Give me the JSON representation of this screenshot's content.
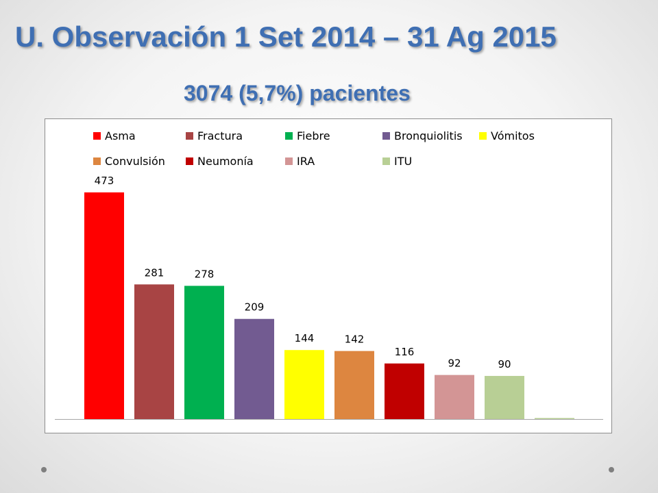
{
  "slide": {
    "title": "U. Observación 1 Set 2014 – 31 Ag 2015",
    "subtitle": "3074 (5,7%) pacientes"
  },
  "chart_data": {
    "type": "bar",
    "grid": false,
    "legend_position": "top",
    "ylim": [
      0,
      473
    ],
    "series": [
      {
        "name": "Asma",
        "value": 473,
        "color": "#ff0000"
      },
      {
        "name": "Fractura",
        "value": 281,
        "color": "#a84444"
      },
      {
        "name": "Fiebre",
        "value": 278,
        "color": "#00b050"
      },
      {
        "name": "Bronquiolitis",
        "value": 209,
        "color": "#725b91"
      },
      {
        "name": "Vómitos",
        "value": 144,
        "color": "#ffff00"
      },
      {
        "name": "Convulsión",
        "value": 142,
        "color": "#dd8640"
      },
      {
        "name": "Neumonía",
        "value": 116,
        "color": "#c00000"
      },
      {
        "name": "IRA",
        "value": 92,
        "color": "#d39595"
      },
      {
        "name": "ITU",
        "value": 90,
        "color": "#b8cf95"
      },
      {
        "name": "",
        "value": 0,
        "color": "#b8cf95"
      }
    ]
  }
}
